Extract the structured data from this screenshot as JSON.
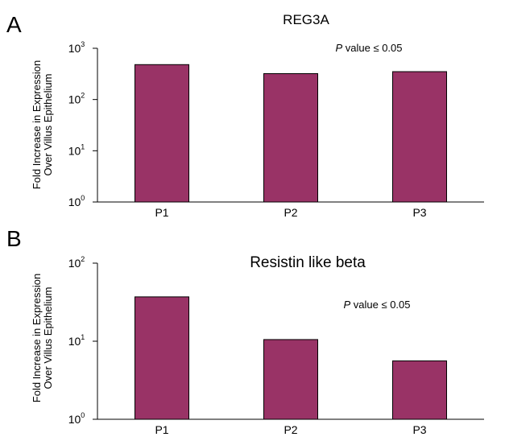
{
  "chart_data": [
    {
      "type": "bar",
      "panel": "A",
      "title": "REG3A",
      "annotation": {
        "italic": "P",
        "rest": " value ≤ 0.05"
      },
      "ylabel_line1": "Fold Increase in Expression",
      "ylabel_line2": "Over Villus Epithelium",
      "yscale": "log",
      "ylim": [
        1,
        1000
      ],
      "yticks": [
        {
          "base": "10",
          "exp": "0",
          "value": 1
        },
        {
          "base": "10",
          "exp": "1",
          "value": 10
        },
        {
          "base": "10",
          "exp": "2",
          "value": 100
        },
        {
          "base": "10",
          "exp": "3",
          "value": 1000
        }
      ],
      "categories": [
        "P1",
        "P2",
        "P3"
      ],
      "values": [
        480,
        320,
        350
      ],
      "color": "#993366"
    },
    {
      "type": "bar",
      "panel": "B",
      "title": "Resistin like beta",
      "annotation": {
        "italic": "P",
        "rest": " value ≤ 0.05"
      },
      "ylabel_line1": "Fold Increase in Expression",
      "ylabel_line2": "Over Villus Epithelium",
      "yscale": "log",
      "ylim": [
        1,
        100
      ],
      "yticks": [
        {
          "base": "10",
          "exp": "0",
          "value": 1
        },
        {
          "base": "10",
          "exp": "1",
          "value": 10
        },
        {
          "base": "10",
          "exp": "2",
          "value": 100
        }
      ],
      "categories": [
        "P1",
        "P2",
        "P3"
      ],
      "values": [
        37,
        10.5,
        5.6
      ],
      "color": "#993366"
    }
  ]
}
